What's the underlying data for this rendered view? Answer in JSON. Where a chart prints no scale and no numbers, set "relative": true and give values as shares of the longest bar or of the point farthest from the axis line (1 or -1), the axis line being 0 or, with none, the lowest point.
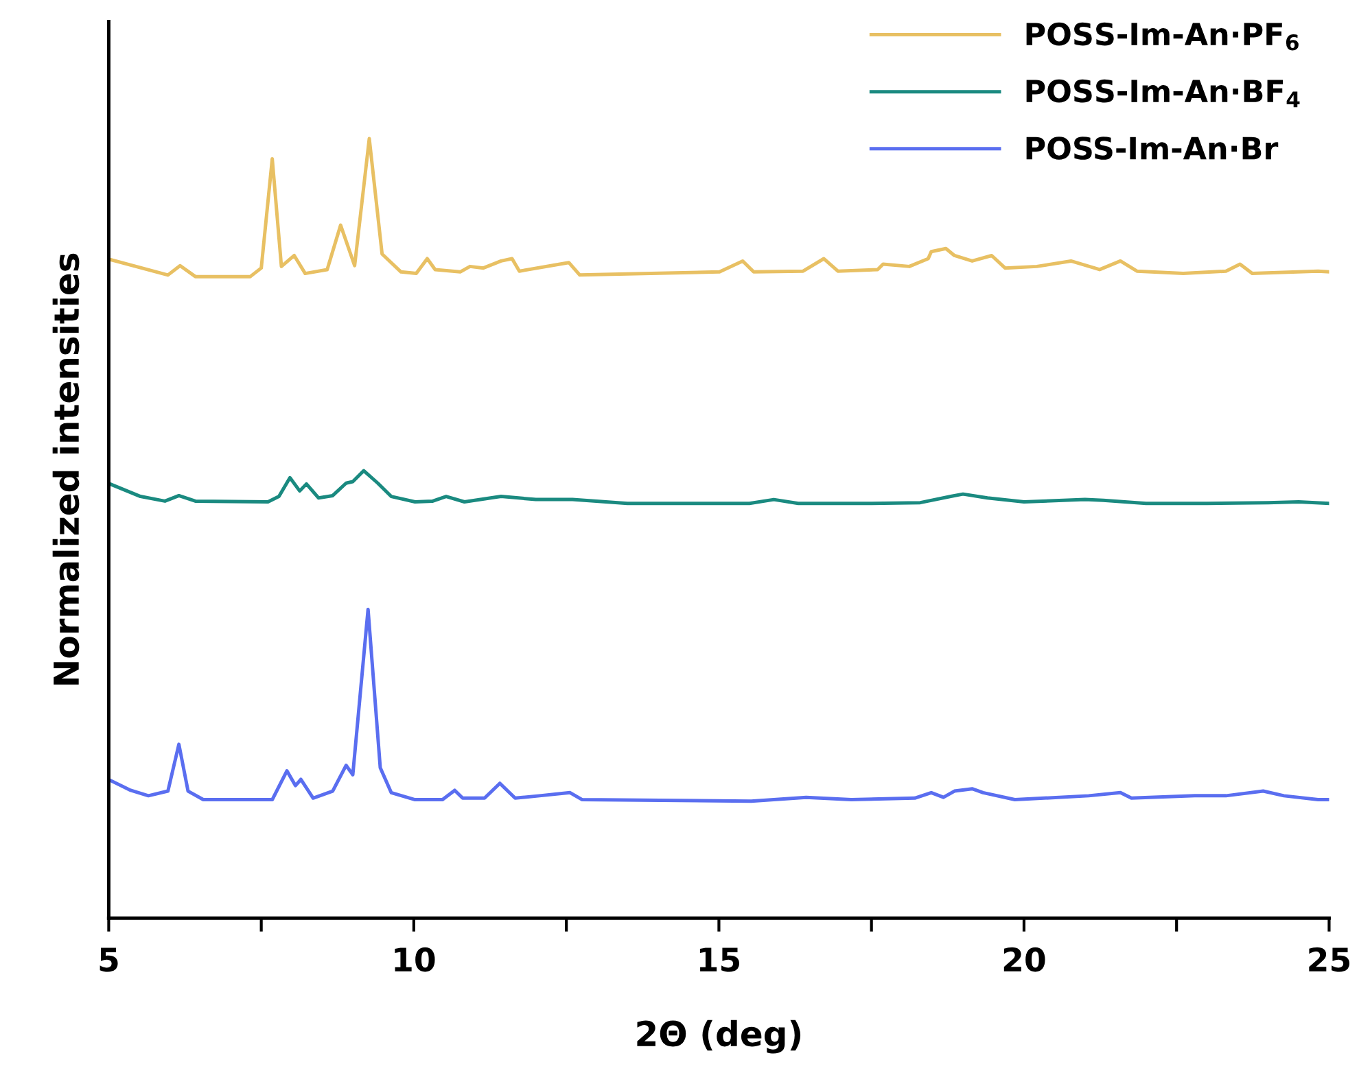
{
  "chart_data": {
    "type": "line",
    "xlabel": "2Θ (deg)",
    "ylabel": "Normalized intensities",
    "relative": true,
    "legend": "top right",
    "grid": false,
    "marker": "none",
    "line_style": "solid",
    "xlim": [
      5,
      25
    ],
    "xticks": [
      5,
      {
        "value": 7.5,
        "label": null
      },
      10,
      {
        "value": 12.5,
        "label": null
      },
      15,
      {
        "value": 17.5,
        "label": null
      },
      20,
      {
        "value": 22.5,
        "label": null
      },
      25
    ],
    "series": [
      {
        "name": "POSS-Im-An·PF$_{6}$",
        "color": "#e8c063",
        "x": [
          5.02,
          5.97,
          6.17,
          6.42,
          7.32,
          7.5,
          7.68,
          7.83,
          8.04,
          8.22,
          8.58,
          8.8,
          9.03,
          9.27,
          9.48,
          9.79,
          10.04,
          10.22,
          10.35,
          10.76,
          10.92,
          11.14,
          11.43,
          11.61,
          11.73,
          12.54,
          12.72,
          15.01,
          15.39,
          15.57,
          16.38,
          16.72,
          16.95,
          17.6,
          17.69,
          18.12,
          18.43,
          18.48,
          18.72,
          18.86,
          19.15,
          19.47,
          19.69,
          20.21,
          20.77,
          21.24,
          21.58,
          21.85,
          22.61,
          23.31,
          23.54,
          23.74,
          24.82,
          25.0
        ],
        "values": [
          0.845,
          0.825,
          0.837,
          0.823,
          0.823,
          0.834,
          0.974,
          0.836,
          0.85,
          0.827,
          0.832,
          0.889,
          0.837,
          1.0,
          0.852,
          0.829,
          0.827,
          0.846,
          0.832,
          0.829,
          0.836,
          0.834,
          0.843,
          0.846,
          0.83,
          0.841,
          0.825,
          0.829,
          0.843,
          0.829,
          0.83,
          0.846,
          0.83,
          0.832,
          0.839,
          0.836,
          0.846,
          0.855,
          0.859,
          0.85,
          0.843,
          0.85,
          0.834,
          0.836,
          0.843,
          0.832,
          0.843,
          0.83,
          0.827,
          0.83,
          0.839,
          0.827,
          0.83,
          0.829
        ]
      },
      {
        "name": "POSS-Im-An·BF$_{4}$",
        "color": "#1a8a80",
        "x": [
          5.02,
          5.52,
          5.92,
          6.15,
          6.42,
          7.61,
          7.79,
          7.97,
          8.13,
          8.24,
          8.44,
          8.67,
          8.89,
          9.0,
          9.18,
          9.41,
          9.63,
          10.02,
          10.31,
          10.53,
          10.83,
          11.43,
          12.0,
          12.6,
          13.5,
          14.5,
          15.5,
          15.9,
          16.3,
          17.5,
          18.3,
          18.8,
          19.0,
          19.4,
          20.0,
          21.0,
          21.3,
          22.0,
          23.0,
          24.0,
          24.5,
          25.0
        ],
        "values": [
          0.557,
          0.541,
          0.535,
          0.542,
          0.535,
          0.534,
          0.541,
          0.565,
          0.548,
          0.557,
          0.539,
          0.542,
          0.558,
          0.56,
          0.574,
          0.558,
          0.541,
          0.534,
          0.535,
          0.541,
          0.534,
          0.541,
          0.537,
          0.537,
          0.532,
          0.532,
          0.532,
          0.537,
          0.532,
          0.532,
          0.533,
          0.541,
          0.544,
          0.539,
          0.534,
          0.537,
          0.536,
          0.532,
          0.532,
          0.533,
          0.534,
          0.532
        ]
      },
      {
        "name": "POSS-Im-An·Br",
        "color": "#5a6ef0",
        "x": [
          5.02,
          5.36,
          5.65,
          5.97,
          6.15,
          6.3,
          6.55,
          7.68,
          7.92,
          8.06,
          8.15,
          8.35,
          8.67,
          8.89,
          9.0,
          9.25,
          9.45,
          9.63,
          10.02,
          10.47,
          10.67,
          10.8,
          11.16,
          11.41,
          11.66,
          12.06,
          12.56,
          12.76,
          15.53,
          16.43,
          17.17,
          18.21,
          18.48,
          18.68,
          18.86,
          19.15,
          19.33,
          19.85,
          21.06,
          21.58,
          21.76,
          22.8,
          23.31,
          23.92,
          24.26,
          24.82,
          25.0
        ],
        "values": [
          0.177,
          0.164,
          0.157,
          0.163,
          0.223,
          0.163,
          0.152,
          0.152,
          0.189,
          0.17,
          0.178,
          0.154,
          0.163,
          0.196,
          0.184,
          0.396,
          0.193,
          0.161,
          0.152,
          0.152,
          0.164,
          0.154,
          0.154,
          0.173,
          0.154,
          0.157,
          0.161,
          0.152,
          0.15,
          0.155,
          0.152,
          0.154,
          0.161,
          0.155,
          0.163,
          0.166,
          0.161,
          0.152,
          0.157,
          0.161,
          0.154,
          0.157,
          0.157,
          0.163,
          0.157,
          0.152,
          0.152
        ]
      }
    ]
  }
}
